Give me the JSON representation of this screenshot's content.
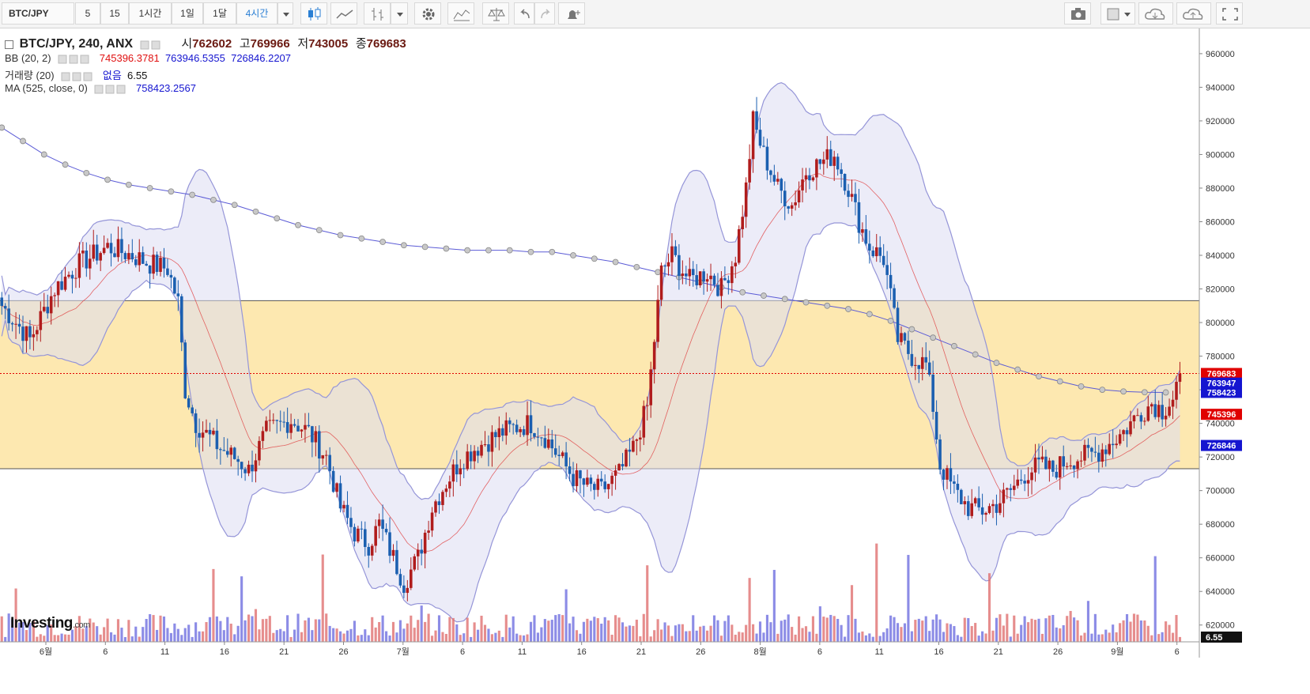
{
  "toolbar": {
    "symbol": "BTC/JPY",
    "intervals": [
      "5",
      "15",
      "1시간",
      "1일",
      "1달",
      "4시간"
    ],
    "active_interval": "4시간"
  },
  "legend": {
    "main": "BTC/JPY, 240, ANX",
    "open_label": "시",
    "open": "762602",
    "high_label": "고",
    "high": "769966",
    "low_label": "저",
    "low": "743005",
    "close_label": "종",
    "close": "769683",
    "bb_name": "BB (20, 2)",
    "bb_mid": "745396.3781",
    "bb_upper": "763946.5355",
    "bb_lower": "726846.2207",
    "vol_name": "거래량 (20)",
    "vol_none": "없음",
    "vol_value": "6.55",
    "ma_name": "MA (525, close, 0)",
    "ma_value": "758423.2567"
  },
  "watermark": {
    "brand": "Investing",
    "suffix": ".com"
  },
  "colors": {
    "up": "#b01c1c",
    "down": "#1b5fb0",
    "bb_band": "#9595d8",
    "bb_fill": "#dcdcf2",
    "bb_mid": "#e04040",
    "ma_line": "#5b5bd6",
    "zone": "#fde8b0",
    "last_price": "#e00000",
    "vol_up": "#e07070",
    "vol_down": "#6f6fe0"
  },
  "chart_data": {
    "type": "candlestick",
    "title": "BTC/JPY, 240, ANX",
    "ylim": [
      610000,
      975000
    ],
    "y_ticks": [
      620000,
      640000,
      660000,
      680000,
      700000,
      720000,
      740000,
      760000,
      780000,
      800000,
      820000,
      840000,
      860000,
      880000,
      900000,
      920000,
      940000,
      960000
    ],
    "y_tick_labels": [
      "620000",
      "640000",
      "660000",
      "680000",
      "700000",
      "720000",
      "740000",
      "760000",
      "780000",
      "800000",
      "820000",
      "840000",
      "860000",
      "880000",
      "900000",
      "920000",
      "940000",
      "960000"
    ],
    "x_labels": [
      "6월",
      "6",
      "11",
      "16",
      "21",
      "26",
      "7월",
      "6",
      "11",
      "16",
      "21",
      "26",
      "8월",
      "6",
      "11",
      "16",
      "21",
      "26",
      "9월",
      "6"
    ],
    "zone": [
      713000,
      813000
    ],
    "last_price_line": 769683,
    "axis_badges": [
      {
        "label": "769683",
        "value": 769683,
        "color": "#e00000"
      },
      {
        "label": "763947",
        "value": 763947,
        "color": "#1515d0"
      },
      {
        "label": "758423",
        "value": 758423,
        "color": "#1515d0"
      },
      {
        "label": "745396",
        "value": 745396,
        "color": "#e00000"
      },
      {
        "label": "726846",
        "value": 726846,
        "color": "#1515d0"
      }
    ],
    "volume_badge": "6.55",
    "price_path": [
      [
        0,
        810000
      ],
      [
        8,
        790000
      ],
      [
        15,
        820000
      ],
      [
        22,
        835000
      ],
      [
        30,
        845000
      ],
      [
        37,
        840000
      ],
      [
        42,
        835000
      ],
      [
        47,
        832000
      ],
      [
        50,
        812000
      ],
      [
        52,
        760000
      ],
      [
        55,
        740000
      ],
      [
        62,
        725000
      ],
      [
        67,
        718000
      ],
      [
        70,
        712000
      ],
      [
        75,
        735000
      ],
      [
        82,
        742000
      ],
      [
        87,
        735000
      ],
      [
        92,
        720000
      ],
      [
        96,
        690000
      ],
      [
        100,
        675000
      ],
      [
        104,
        668000
      ],
      [
        107,
        680000
      ],
      [
        110,
        665000
      ],
      [
        114,
        645000
      ],
      [
        118,
        660000
      ],
      [
        122,
        690000
      ],
      [
        126,
        705000
      ],
      [
        130,
        718000
      ],
      [
        134,
        725000
      ],
      [
        138,
        730000
      ],
      [
        142,
        735000
      ],
      [
        146,
        738000
      ],
      [
        150,
        740000
      ],
      [
        154,
        732000
      ],
      [
        158,
        720000
      ],
      [
        162,
        708000
      ],
      [
        166,
        702000
      ],
      [
        170,
        700000
      ],
      [
        175,
        710000
      ],
      [
        179,
        725000
      ],
      [
        183,
        750000
      ],
      [
        185,
        790000
      ],
      [
        187,
        830000
      ],
      [
        190,
        840000
      ],
      [
        195,
        825000
      ],
      [
        200,
        830000
      ],
      [
        204,
        820000
      ],
      [
        208,
        840000
      ],
      [
        211,
        880000
      ],
      [
        213,
        920000
      ],
      [
        216,
        900000
      ],
      [
        220,
        880000
      ],
      [
        224,
        870000
      ],
      [
        228,
        890000
      ],
      [
        232,
        895000
      ],
      [
        236,
        900000
      ],
      [
        240,
        880000
      ],
      [
        243,
        860000
      ],
      [
        246,
        845000
      ],
      [
        250,
        838000
      ],
      [
        252,
        815000
      ],
      [
        254,
        790000
      ],
      [
        258,
        780000
      ],
      [
        262,
        775000
      ],
      [
        264,
        750000
      ],
      [
        266,
        715000
      ],
      [
        270,
        700000
      ],
      [
        274,
        690000
      ],
      [
        278,
        688000
      ],
      [
        282,
        692000
      ],
      [
        286,
        700000
      ],
      [
        290,
        710000
      ],
      [
        294,
        715000
      ],
      [
        298,
        712000
      ],
      [
        302,
        718000
      ],
      [
        306,
        720000
      ],
      [
        310,
        722000
      ],
      [
        314,
        728000
      ],
      [
        318,
        735000
      ],
      [
        322,
        745000
      ],
      [
        326,
        752000
      ],
      [
        329,
        748000
      ],
      [
        332,
        755000
      ],
      [
        334,
        769683
      ]
    ],
    "ma_dots": [
      [
        0,
        916000
      ],
      [
        6,
        908000
      ],
      [
        12,
        900000
      ],
      [
        18,
        894000
      ],
      [
        24,
        889000
      ],
      [
        30,
        885000
      ],
      [
        36,
        882000
      ],
      [
        42,
        880000
      ],
      [
        48,
        878000
      ],
      [
        54,
        876000
      ],
      [
        60,
        873000
      ],
      [
        66,
        870000
      ],
      [
        72,
        866000
      ],
      [
        78,
        862000
      ],
      [
        84,
        858000
      ],
      [
        90,
        855000
      ],
      [
        96,
        852000
      ],
      [
        102,
        850000
      ],
      [
        108,
        848000
      ],
      [
        114,
        846000
      ],
      [
        120,
        845000
      ],
      [
        126,
        844000
      ],
      [
        132,
        843000
      ],
      [
        138,
        843000
      ],
      [
        144,
        843000
      ],
      [
        150,
        842000
      ],
      [
        156,
        842000
      ],
      [
        162,
        840000
      ],
      [
        168,
        838000
      ],
      [
        174,
        836000
      ],
      [
        180,
        833000
      ],
      [
        186,
        830000
      ],
      [
        192,
        827000
      ],
      [
        198,
        824000
      ],
      [
        204,
        821000
      ],
      [
        210,
        818000
      ],
      [
        216,
        816000
      ],
      [
        222,
        814000
      ],
      [
        228,
        812000
      ],
      [
        234,
        810000
      ],
      [
        240,
        808000
      ],
      [
        246,
        805000
      ],
      [
        252,
        801000
      ],
      [
        258,
        796000
      ],
      [
        264,
        791000
      ],
      [
        270,
        786000
      ],
      [
        276,
        781000
      ],
      [
        282,
        776000
      ],
      [
        288,
        772000
      ],
      [
        294,
        768000
      ],
      [
        300,
        765000
      ],
      [
        306,
        762000
      ],
      [
        312,
        760000
      ],
      [
        318,
        759000
      ],
      [
        324,
        758500
      ],
      [
        330,
        758423
      ]
    ]
  }
}
